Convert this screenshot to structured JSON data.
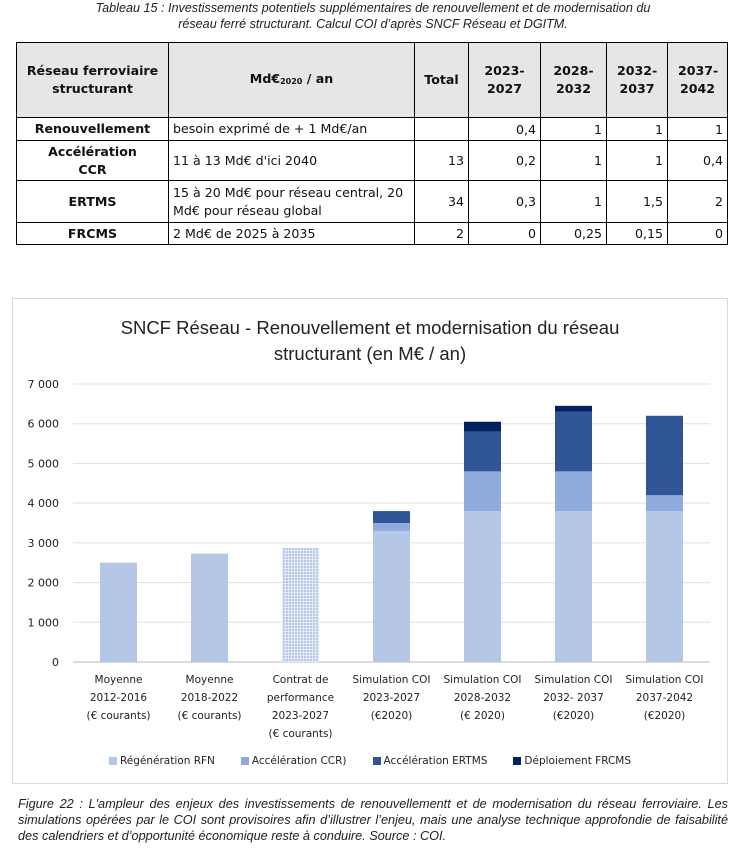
{
  "table_caption": {
    "line1": "Tableau 15 : Investissements potentiels supplémentaires de renouvellement et de modernisation du",
    "line2": "réseau ferré structurant. Calcul COI d’après SNCF Réseau et DGITM."
  },
  "table": {
    "headers": {
      "col1": "Réseau ferroviaire structurant",
      "col2_main": "Md€",
      "col2_sub": "2020",
      "col2_suffix": " / an",
      "total": "Total",
      "p1": "2023-2027",
      "p2": "2028-2032",
      "p3": "2032-2037",
      "p4": "2037-2042"
    },
    "rows": [
      {
        "name": "Renouvellement",
        "desc": "besoin exprimé de + 1 Md€/an",
        "total": "",
        "p1": "0,4",
        "p2": "1",
        "p3": "1",
        "p4": "1"
      },
      {
        "name": "Accélération CCR",
        "desc": "11 à 13 Md€ d'ici 2040",
        "total": "13",
        "p1": "0,2",
        "p2": "1",
        "p3": "1",
        "p4": "0,4"
      },
      {
        "name": "ERTMS",
        "desc": "15 à 20 Md€ pour réseau central, 20 Md€ pour réseau global",
        "total": "34",
        "p1": "0,3",
        "p2": "1",
        "p3": "1,5",
        "p4": "2"
      },
      {
        "name": "FRCMS",
        "desc": "2 Md€ de 2025 à 2035",
        "total": "2",
        "p1": "0",
        "p2": "0,25",
        "p3": "0,15",
        "p4": "0"
      }
    ]
  },
  "chart_data": {
    "type": "bar",
    "stacked": true,
    "title": "SNCF Réseau - Renouvellement et modernisation du réseau structurant (en M€ / an)",
    "title_line1": "SNCF Réseau - Renouvellement et modernisation du réseau",
    "title_line2": "structurant (en M€ / an)",
    "xlabel": "",
    "ylabel": "",
    "ylim": [
      0,
      7000
    ],
    "yticks": [
      0,
      1000,
      2000,
      3000,
      4000,
      5000,
      6000,
      7000
    ],
    "ytick_labels": [
      "0",
      "1 000",
      "2 000",
      "3 000",
      "4 000",
      "5 000",
      "6 000",
      "7 000"
    ],
    "grid": true,
    "legend_position": "bottom",
    "categories": [
      [
        "Moyenne",
        "2012-2016",
        "(€ courants)"
      ],
      [
        "Moyenne",
        "2018-2022",
        "(€ courants)"
      ],
      [
        "Contrat de",
        "performance",
        "2023-2027",
        "(€ courants)"
      ],
      [
        "Simulation COI",
        "2023-2027",
        "(€2020)"
      ],
      [
        "Simulation COI",
        "2028-2032",
        "(€ 2020)"
      ],
      [
        "Simulation COI",
        "2032- 2037",
        "(€2020)"
      ],
      [
        "Simulation COI",
        "2037-2042",
        "(€2020)"
      ]
    ],
    "patterned_categories": [
      2
    ],
    "series": [
      {
        "name": "Régénération RFN",
        "color": "#b4c7e7",
        "values": [
          2500,
          2730,
          2870,
          3300,
          3800,
          3800,
          3800
        ]
      },
      {
        "name": "Accélération CCR)",
        "color": "#8faadc",
        "values": [
          0,
          0,
          0,
          200,
          1000,
          1000,
          400
        ]
      },
      {
        "name": "Accélération ERTMS",
        "color": "#2f5597",
        "values": [
          0,
          0,
          0,
          300,
          1000,
          1500,
          2000
        ]
      },
      {
        "name": "Déploiement FRCMS",
        "color": "#002060",
        "values": [
          0,
          0,
          0,
          0,
          250,
          150,
          0
        ]
      }
    ]
  },
  "figure_caption": "Figure 22 : L'ampleur des enjeux des investissements de renouvellementt et de modernisation du réseau ferroviaire. Les simulations opérées par le COI sont provisoires afin d’illustrer l’enjeu, mais une analyse technique approfondie de faisabilité des calendriers et d’opportunité économique reste à conduire. Source : COI."
}
